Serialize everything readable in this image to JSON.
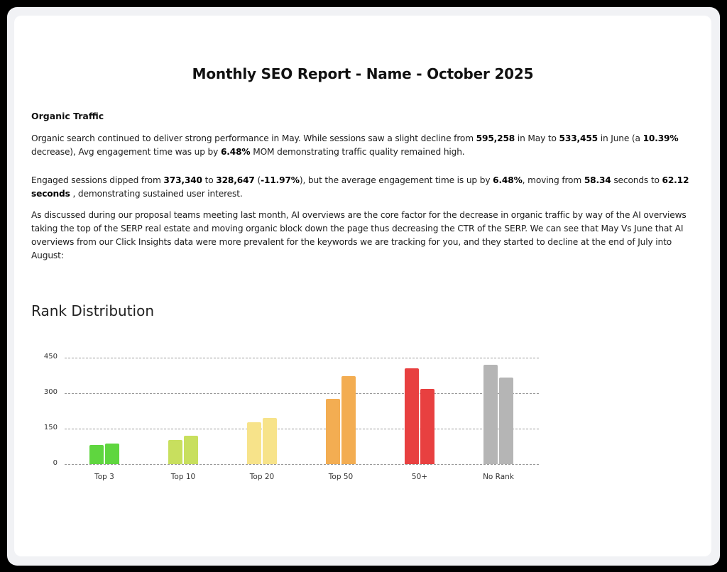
{
  "report": {
    "title": "Monthly SEO Report - Name - October 2025",
    "section_heading": "Organic Traffic",
    "paragraphs": [
      {
        "segments": [
          {
            "text": "Organic search continued to deliver strong performance in May. While sessions saw a slight decline from ",
            "bold": false
          },
          {
            "text": "595,258",
            "bold": true
          },
          {
            "text": " in May to ",
            "bold": false
          },
          {
            "text": "533,455",
            "bold": true
          },
          {
            "text": " in June (a ",
            "bold": false
          },
          {
            "text": "10.39%",
            "bold": true
          },
          {
            "text": " decrease), Avg engagement time was up by ",
            "bold": false
          },
          {
            "text": "6.48%",
            "bold": true
          },
          {
            "text": " MOM demonstrating traffic quality remained high.",
            "bold": false
          }
        ]
      },
      {
        "segments": [
          {
            "text": "Engaged sessions dipped from ",
            "bold": false
          },
          {
            "text": "373,340",
            "bold": true
          },
          {
            "text": " to ",
            "bold": false
          },
          {
            "text": "328,647",
            "bold": true
          },
          {
            "text": " (",
            "bold": false
          },
          {
            "text": "-11.97%",
            "bold": true
          },
          {
            "text": "), but the average engagement time is up by ",
            "bold": false
          },
          {
            "text": "6.48%",
            "bold": true
          },
          {
            "text": ", moving from ",
            "bold": false
          },
          {
            "text": "58.34",
            "bold": true
          },
          {
            "text": " seconds to ",
            "bold": false
          },
          {
            "text": "62.12 seconds",
            "bold": true
          },
          {
            "text": " , demonstrating sustained user interest.",
            "bold": false
          }
        ]
      },
      {
        "segments": [
          {
            "text": " As discussed during our proposal teams meeting last month, AI overviews are the core factor for the decrease in organic traffic by way of the AI overviews taking the top of the SERP real estate and moving organic block down the page thus decreasing the CTR of the SERP. We can see that May Vs June that AI overviews from our Click Insights data were more prevalent for the keywords we are tracking for you, and they started to decline at the end of July into August:",
            "bold": false
          }
        ]
      }
    ]
  },
  "chart_data": {
    "type": "bar",
    "title": "Rank Distribution",
    "xlabel": "",
    "ylabel": "",
    "categories": [
      "Top 3",
      "Top 10",
      "Top 20",
      "Top 50",
      "50+",
      "No Rank"
    ],
    "series": [
      {
        "name": "Series 1",
        "values": [
          82,
          102,
          177,
          277,
          404,
          419
        ]
      },
      {
        "name": "Series 2",
        "values": [
          88,
          121,
          194,
          372,
          319,
          367
        ]
      }
    ],
    "colors": [
      "#5fd63f",
      "#c8df5e",
      "#f7e38a",
      "#f3ad52",
      "#e84040",
      "#b5b5b5"
    ],
    "yticks": [
      0,
      150,
      300,
      450
    ],
    "ylim": [
      0,
      450
    ],
    "grid": true,
    "legend": "none"
  }
}
